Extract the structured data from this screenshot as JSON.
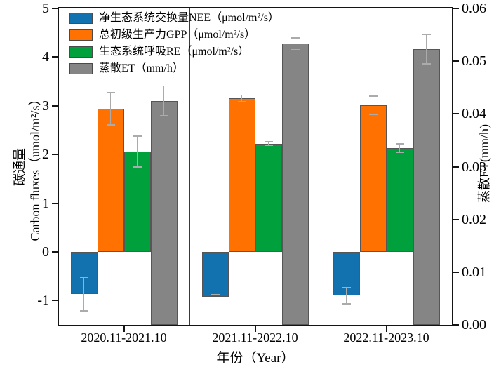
{
  "chart_data": {
    "type": "bar",
    "title": "",
    "categories": [
      "2020.11-2021.10",
      "2021.11-2022.10",
      "2022.11-2023.10"
    ],
    "series": [
      {
        "key": "nee",
        "name": "净生态系统交换量NEE（μmol/m²/s）",
        "axis": "left",
        "color": "#1172AF",
        "values": [
          -0.87,
          -0.93,
          -0.9
        ],
        "errors": [
          0.34,
          0.06,
          0.17
        ]
      },
      {
        "key": "gpp",
        "name": "总初级生产力GPP（μmol/m²/s）",
        "axis": "left",
        "color": "#FF7100",
        "values": [
          2.94,
          3.15,
          3.01
        ],
        "errors": [
          0.33,
          0.07,
          0.19
        ]
      },
      {
        "key": "re",
        "name": "生态系统呼吸RE（μmol/m²/s）",
        "axis": "left",
        "color": "#00A03C",
        "values": [
          2.06,
          2.22,
          2.13
        ],
        "errors": [
          0.32,
          0.04,
          0.09
        ]
      },
      {
        "key": "et",
        "name": "蒸散ET（mm/h）",
        "axis": "right",
        "color": "#858585",
        "values": [
          0.0425,
          0.0533,
          0.0523
        ],
        "errors": [
          0.0028,
          0.0011,
          0.0028
        ]
      }
    ],
    "left_axis": {
      "label_line1": "碳通量",
      "label_line2": "Carbon fluxes（umol/m²/s）",
      "ylim": [
        -1.5,
        5
      ],
      "ticks": [
        "5",
        "4",
        "3",
        "2",
        "1",
        "0",
        "-1"
      ]
    },
    "right_axis": {
      "label": "蒸散ET(mm/h)",
      "ylim": [
        0,
        0.06
      ],
      "ticks": [
        "0.06",
        "0.05",
        "0.04",
        "0.03",
        "0.02",
        "0.01",
        "0.00"
      ]
    },
    "x_axis": {
      "label": "年份（Year）"
    },
    "legend_position": "top-left",
    "grid": false,
    "bar_edge_color": "#565656",
    "error_bar_color": "#ABABAB",
    "axis_color": "#141414"
  }
}
